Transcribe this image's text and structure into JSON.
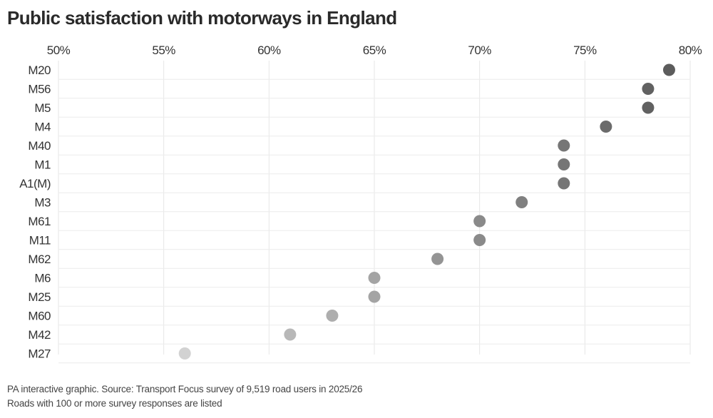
{
  "title": "Public satisfaction with motorways in England",
  "footer": {
    "source": "PA interactive graphic. Source: Transport Focus survey of 9,519 road users in 2025/26",
    "note": "Roads with 100 or more survey responses are listed"
  },
  "chart_data": {
    "type": "scatter",
    "title": "Public satisfaction with motorways in England",
    "x_ticks": [
      "50%",
      "55%",
      "60%",
      "65%",
      "70%",
      "75%",
      "80%"
    ],
    "xlim": [
      50,
      80
    ],
    "grid": true,
    "categories": [
      "M20",
      "M56",
      "M5",
      "M4",
      "M40",
      "M1",
      "A1(M)",
      "M3",
      "M61",
      "M11",
      "M62",
      "M6",
      "M25",
      "M60",
      "M42",
      "M27"
    ],
    "values": [
      79,
      78,
      78,
      76,
      74,
      74,
      74,
      72,
      70,
      70,
      68,
      65,
      65,
      63,
      61,
      56
    ]
  }
}
